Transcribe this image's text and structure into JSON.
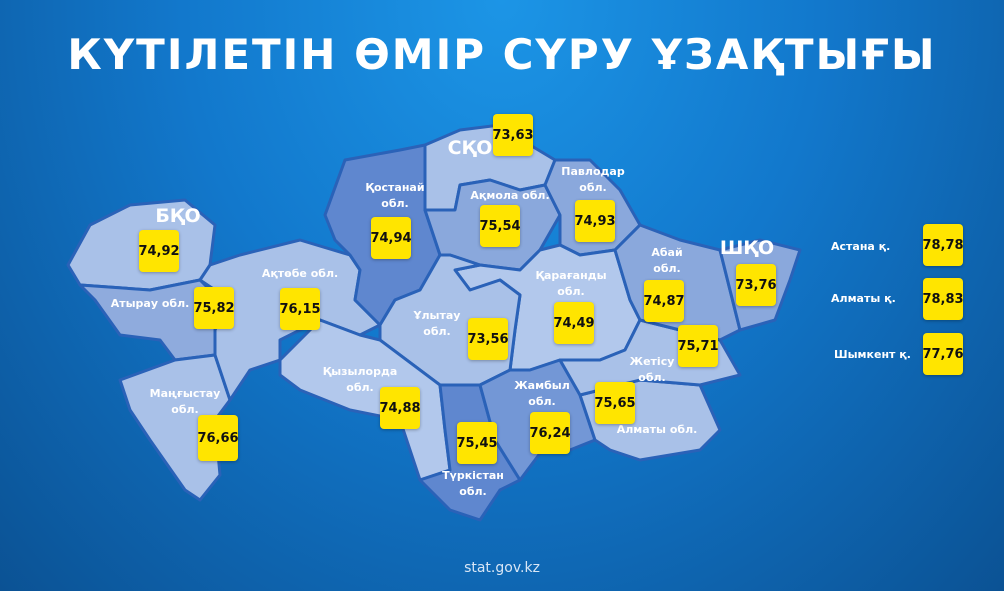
{
  "title": "КҮТІЛЕТІН ӨМІР СҮРУ ҰЗАҚТЫҒЫ",
  "source": "stat.gov.kz",
  "colors": {
    "value_box": "#ffe500",
    "region_light": "#a9c1e8",
    "region_mid": "#8aa8dc",
    "region_dark": "#5f87cf",
    "border": "#2a62b8"
  },
  "regions": [
    {
      "id": "bko",
      "label": "БҚО",
      "value": "74,92"
    },
    {
      "id": "atyrau",
      "label": "Атырау обл.",
      "value": "75,82"
    },
    {
      "id": "mangystau",
      "label": "Маңғыстау\nобл.",
      "value": "76,66"
    },
    {
      "id": "aktobe",
      "label": "Ақтөбе обл.",
      "value": "76,15"
    },
    {
      "id": "kostanai",
      "label": "Қостанай\nобл.",
      "value": "74,94"
    },
    {
      "id": "sko",
      "label": "СҚО",
      "value": "73,63"
    },
    {
      "id": "akmola",
      "label": "Ақмола обл.",
      "value": "75,54"
    },
    {
      "id": "pavlodar",
      "label": "Павлодар\nобл.",
      "value": "74,93"
    },
    {
      "id": "karagandy",
      "label": "Қарағанды\nобл.",
      "value": "74,49"
    },
    {
      "id": "ulytau",
      "label": "Ұлытау\nобл.",
      "value": "73,56"
    },
    {
      "id": "kyzylorda",
      "label": "Қызылорда\nобл.",
      "value": "74,88"
    },
    {
      "id": "turkestan",
      "label": "Түркістан\nобл.",
      "value": "75,45"
    },
    {
      "id": "zhambyl",
      "label": "Жамбыл\nобл.",
      "value": "76,24"
    },
    {
      "id": "almaty_obl",
      "label": "Алматы обл.",
      "value": "75,65"
    },
    {
      "id": "zhetisu",
      "label": "Жетісу\nобл.",
      "value": "75,71"
    },
    {
      "id": "abai",
      "label": "Абай\nобл.",
      "value": "74,87"
    },
    {
      "id": "vko",
      "label": "ШҚО",
      "value": "73,76"
    }
  ],
  "cities": [
    {
      "label": "Астана қ.",
      "value": "78,78"
    },
    {
      "label": "Алматы қ.",
      "value": "78,83"
    },
    {
      "label": "Шымкент қ.",
      "value": "77,76"
    }
  ]
}
